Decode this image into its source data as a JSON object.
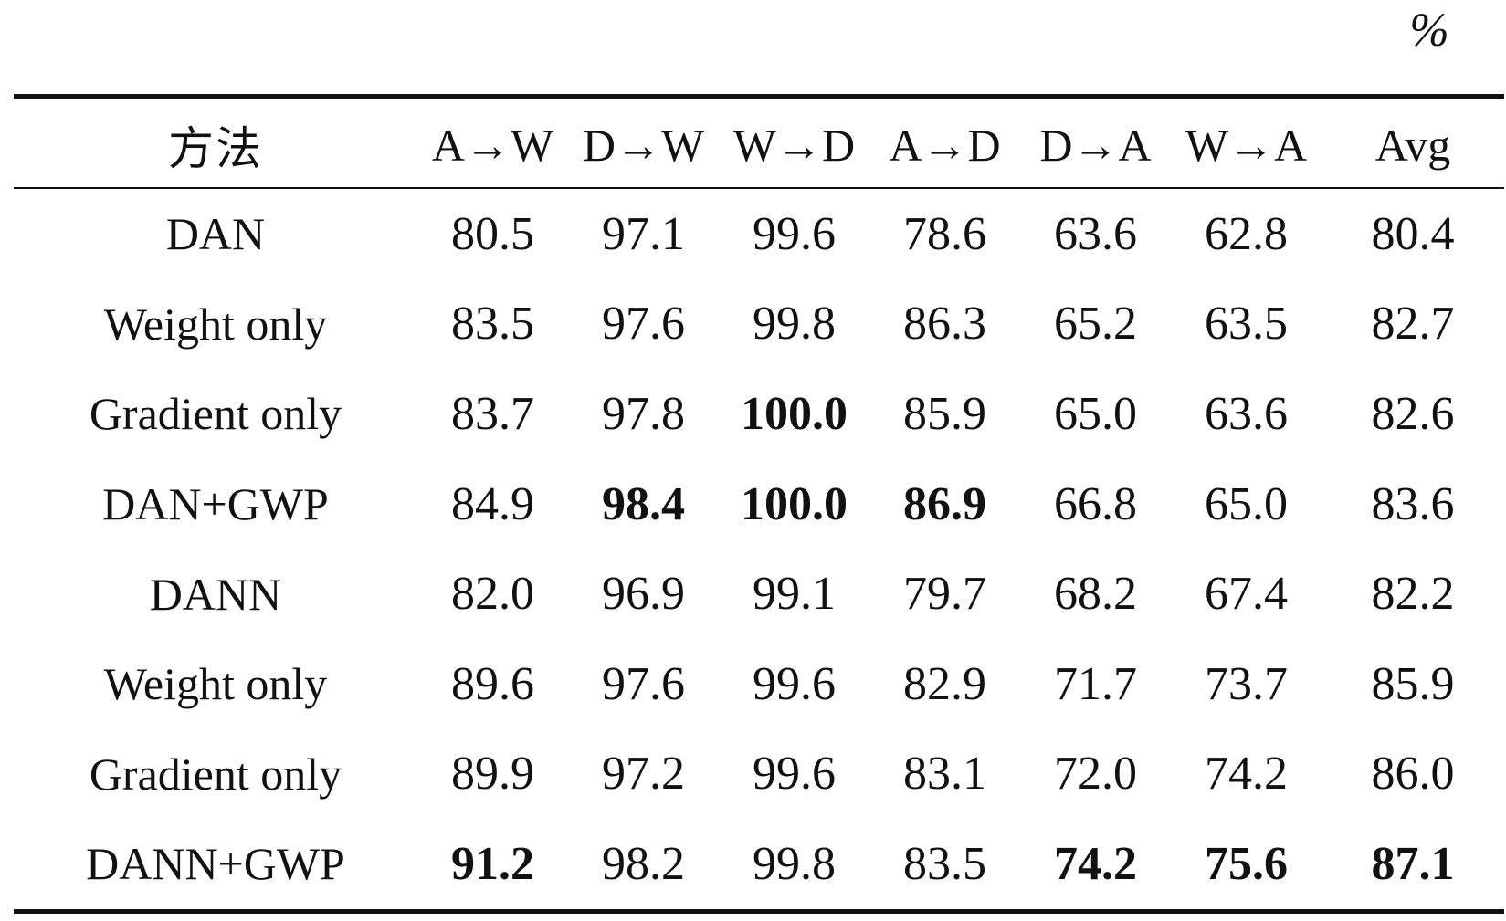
{
  "unit_label": "%",
  "table": {
    "columns": [
      "方法",
      "A→W",
      "D→W",
      "W→D",
      "A→D",
      "D→A",
      "W→A",
      "Avg"
    ],
    "rows": [
      {
        "method": "DAN",
        "values": [
          "80.5",
          "97.1",
          "99.6",
          "78.6",
          "63.6",
          "62.8",
          "80.4"
        ],
        "bold": [
          false,
          false,
          false,
          false,
          false,
          false,
          false
        ]
      },
      {
        "method": "Weight only",
        "values": [
          "83.5",
          "97.6",
          "99.8",
          "86.3",
          "65.2",
          "63.5",
          "82.7"
        ],
        "bold": [
          false,
          false,
          false,
          false,
          false,
          false,
          false
        ]
      },
      {
        "method": "Gradient only",
        "values": [
          "83.7",
          "97.8",
          "100.0",
          "85.9",
          "65.0",
          "63.6",
          "82.6"
        ],
        "bold": [
          false,
          false,
          true,
          false,
          false,
          false,
          false
        ]
      },
      {
        "method": "DAN+GWP",
        "values": [
          "84.9",
          "98.4",
          "100.0",
          "86.9",
          "66.8",
          "65.0",
          "83.6"
        ],
        "bold": [
          false,
          true,
          true,
          true,
          false,
          false,
          false
        ]
      },
      {
        "method": "DANN",
        "values": [
          "82.0",
          "96.9",
          "99.1",
          "79.7",
          "68.2",
          "67.4",
          "82.2"
        ],
        "bold": [
          false,
          false,
          false,
          false,
          false,
          false,
          false
        ]
      },
      {
        "method": "Weight only",
        "values": [
          "89.6",
          "97.6",
          "99.6",
          "82.9",
          "71.7",
          "73.7",
          "85.9"
        ],
        "bold": [
          false,
          false,
          false,
          false,
          false,
          false,
          false
        ]
      },
      {
        "method": "Gradient only",
        "values": [
          "89.9",
          "97.2",
          "99.6",
          "83.1",
          "72.0",
          "74.2",
          "86.0"
        ],
        "bold": [
          false,
          false,
          false,
          false,
          false,
          false,
          false
        ]
      },
      {
        "method": "DANN+GWP",
        "values": [
          "91.2",
          "98.2",
          "99.8",
          "83.5",
          "74.2",
          "75.6",
          "87.1"
        ],
        "bold": [
          true,
          false,
          false,
          false,
          true,
          true,
          true
        ]
      }
    ]
  }
}
